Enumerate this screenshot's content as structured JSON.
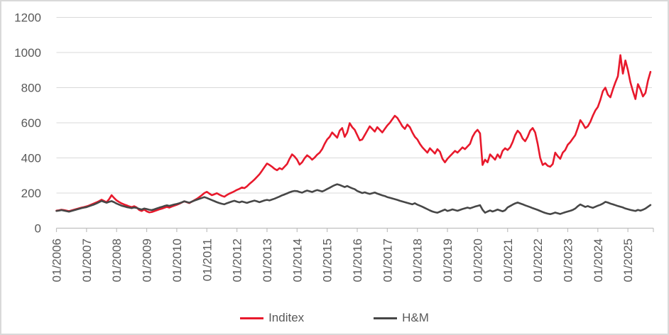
{
  "figure": {
    "background": "#FFFFFF",
    "border_color": "#D9D9D9"
  },
  "chart_data": {
    "type": "line",
    "title": "",
    "x_start_label": "01/2006",
    "x_months_per_point": 1,
    "x_tick_labels": [
      "01/2006",
      "01/2007",
      "01/2008",
      "01/2009",
      "01/2010",
      "01/2011",
      "01/2012",
      "01/2013",
      "01/2014",
      "01/2015",
      "01/2016",
      "01/2017",
      "01/2018",
      "01/2019",
      "01/2020",
      "01/2021",
      "01/2022",
      "01/2023",
      "01/2024",
      "01/2025"
    ],
    "y_ticks": [
      0,
      200,
      400,
      600,
      800,
      1000,
      1200
    ],
    "ylim": [
      0,
      1200
    ],
    "grid": "horizontal",
    "legend_position": "bottom",
    "axis_text_color": "#595959",
    "gridline_color": "#D9D9D9",
    "axis_line_color": "#C0C0C0",
    "series": [
      {
        "name": "Inditex",
        "color": "#E8192C",
        "values": [
          100,
          102,
          105,
          103,
          100,
          97,
          101,
          105,
          109,
          113,
          117,
          120,
          124,
          129,
          135,
          141,
          147,
          154,
          162,
          155,
          148,
          165,
          188,
          172,
          158,
          149,
          141,
          135,
          130,
          124,
          120,
          125,
          118,
          104,
          98,
          106,
          96,
          90,
          92,
          97,
          102,
          107,
          111,
          116,
          121,
          117,
          123,
          128,
          133,
          139,
          146,
          153,
          148,
          143,
          151,
          159,
          167,
          177,
          188,
          200,
          207,
          197,
          188,
          193,
          199,
          191,
          184,
          179,
          189,
          197,
          203,
          210,
          218,
          224,
          232,
          228,
          238,
          252,
          264,
          277,
          292,
          307,
          327,
          348,
          368,
          360,
          350,
          338,
          330,
          342,
          335,
          350,
          365,
          395,
          420,
          408,
          390,
          362,
          375,
          398,
          415,
          405,
          390,
          402,
          418,
          430,
          450,
          480,
          505,
          520,
          545,
          530,
          515,
          555,
          570,
          520,
          545,
          598,
          575,
          560,
          530,
          500,
          505,
          530,
          555,
          580,
          565,
          550,
          575,
          560,
          545,
          565,
          585,
          600,
          620,
          640,
          628,
          605,
          580,
          565,
          590,
          575,
          545,
          520,
          505,
          480,
          460,
          445,
          430,
          455,
          440,
          425,
          450,
          435,
          395,
          375,
          395,
          410,
          425,
          440,
          430,
          445,
          460,
          450,
          465,
          480,
          520,
          545,
          560,
          540,
          360,
          390,
          375,
          420,
          405,
          390,
          420,
          400,
          440,
          455,
          445,
          460,
          490,
          530,
          555,
          540,
          510,
          495,
          520,
          555,
          570,
          545,
          480,
          400,
          360,
          370,
          355,
          350,
          365,
          430,
          410,
          395,
          430,
          445,
          475,
          490,
          510,
          530,
          570,
          615,
          595,
          570,
          580,
          605,
          640,
          670,
          690,
          730,
          780,
          800,
          760,
          745,
          790,
          830,
          865,
          985,
          880,
          955,
          900,
          830,
          780,
          735,
          820,
          790,
          750,
          770,
          840,
          890
        ]
      },
      {
        "name": "H&M",
        "color": "#474747",
        "values": [
          98,
          100,
          103,
          100,
          97,
          94,
          98,
          102,
          106,
          110,
          114,
          117,
          120,
          125,
          130,
          135,
          141,
          148,
          155,
          150,
          145,
          150,
          154,
          148,
          140,
          134,
          128,
          124,
          120,
          117,
          114,
          118,
          115,
          110,
          106,
          112,
          109,
          105,
          103,
          107,
          112,
          117,
          121,
          126,
          130,
          127,
          131,
          135,
          138,
          142,
          147,
          153,
          149,
          145,
          151,
          157,
          162,
          167,
          172,
          177,
          172,
          166,
          160,
          154,
          148,
          143,
          139,
          136,
          142,
          147,
          152,
          156,
          151,
          147,
          152,
          148,
          144,
          149,
          153,
          157,
          153,
          148,
          153,
          158,
          161,
          158,
          163,
          168,
          174,
          180,
          187,
          192,
          198,
          204,
          209,
          212,
          211,
          206,
          202,
          209,
          214,
          210,
          206,
          212,
          217,
          213,
          209,
          215,
          223,
          230,
          238,
          245,
          250,
          246,
          240,
          234,
          240,
          233,
          227,
          222,
          212,
          206,
          200,
          204,
          199,
          195,
          199,
          203,
          197,
          192,
          187,
          183,
          177,
          173,
          169,
          165,
          161,
          156,
          152,
          148,
          144,
          140,
          136,
          142,
          134,
          128,
          122,
          115,
          108,
          101,
          95,
          91,
          88,
          94,
          100,
          106,
          98,
          102,
          107,
          103,
          99,
          104,
          109,
          113,
          117,
          113,
          118,
          123,
          127,
          131,
          105,
          88,
          95,
          101,
          95,
          100,
          106,
          101,
          96,
          102,
          118,
          126,
          134,
          141,
          146,
          141,
          136,
          130,
          125,
          120,
          114,
          109,
          104,
          98,
          92,
          87,
          83,
          80,
          84,
          89,
          85,
          81,
          86,
          91,
          95,
          99,
          104,
          112,
          125,
          135,
          128,
          121,
          126,
          120,
          116,
          122,
          128,
          133,
          140,
          150,
          146,
          140,
          136,
          131,
          126,
          122,
          118,
          112,
          108,
          104,
          101,
          98,
          104,
          100,
          105,
          112,
          122,
          132
        ]
      }
    ]
  }
}
